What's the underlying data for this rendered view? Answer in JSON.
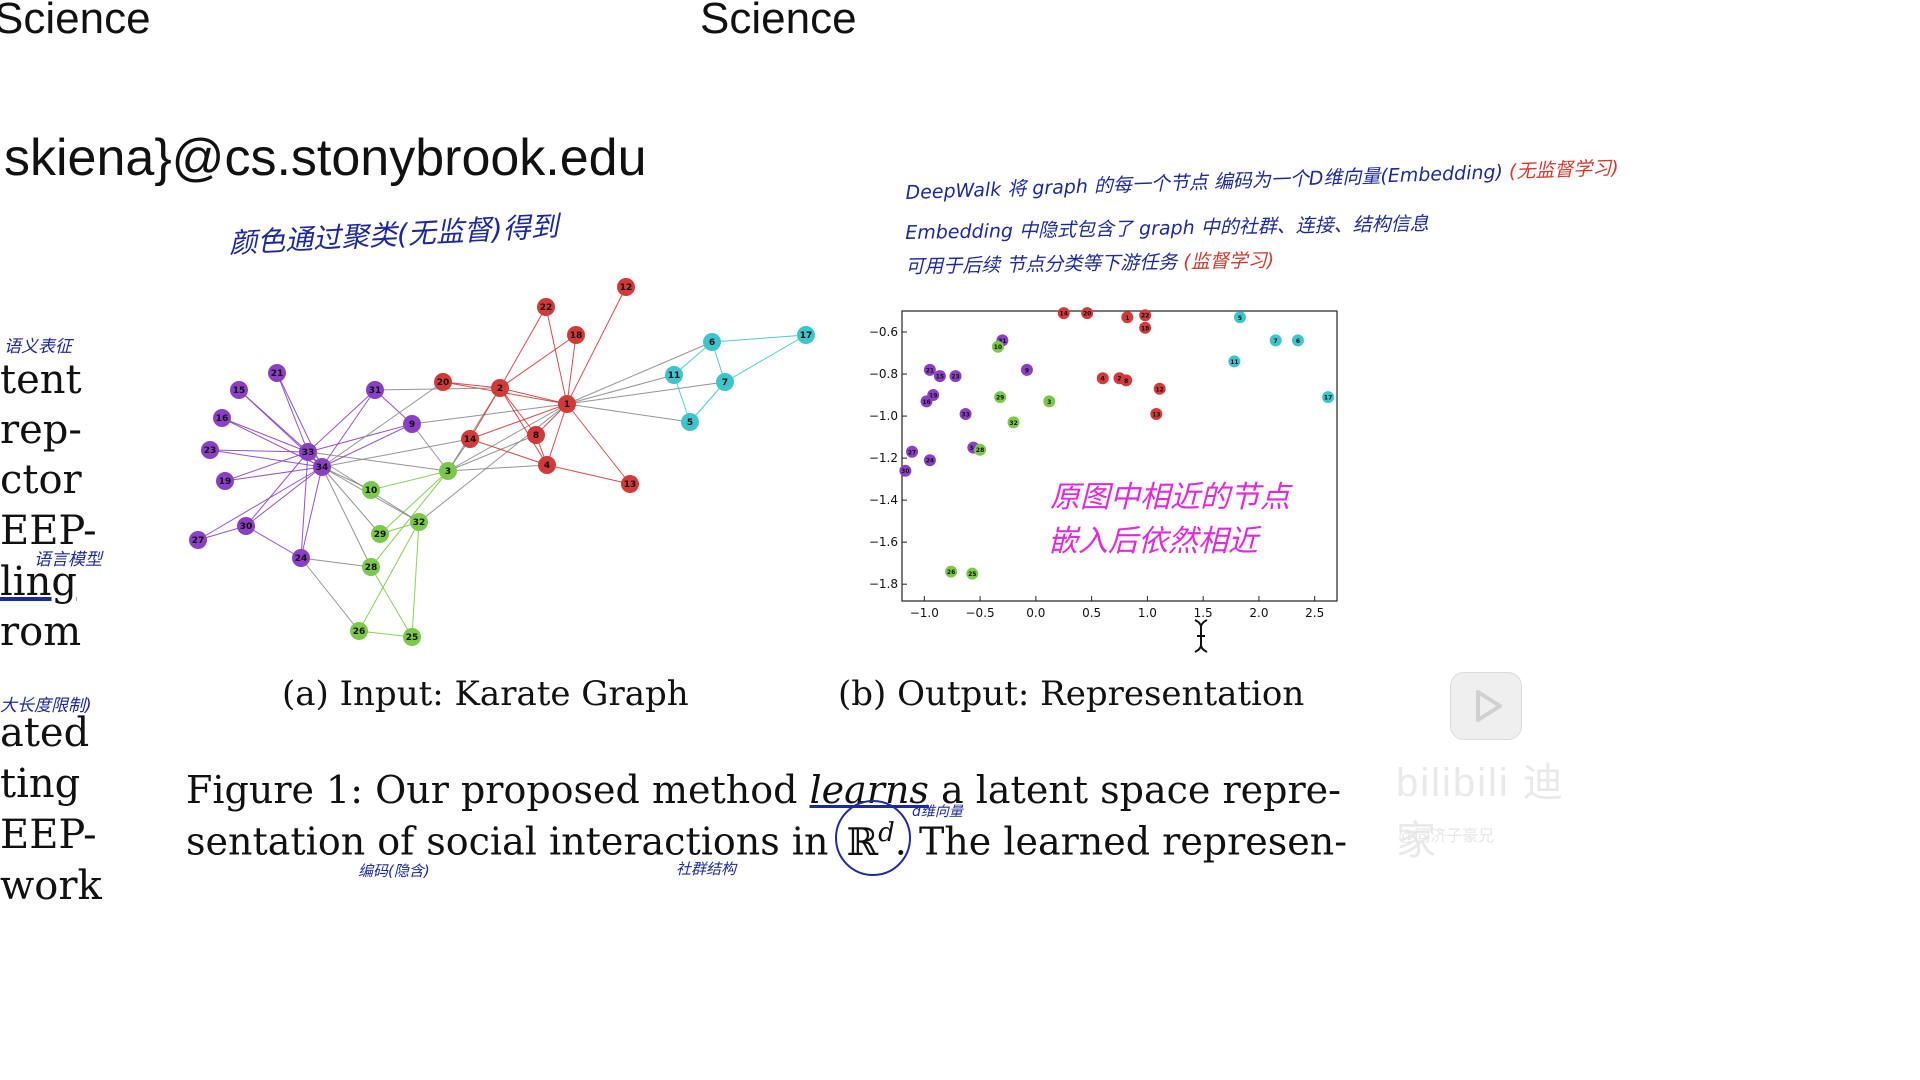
{
  "header": {
    "left_word": "Science",
    "mid_word": "Science",
    "email": "skiena}@cs.stonybrook.edu"
  },
  "left_margin_words": [
    "tent",
    "rep-",
    "ctor",
    "EEP-",
    "ling",
    "rom",
    "ated",
    "ting",
    "EEP-",
    "work"
  ],
  "left_annotations": {
    "a1": "语义表征",
    "a2": "语言模型",
    "a3": "大长度限制)"
  },
  "cluster_note": "颜色通过聚类(无监督)得到",
  "deepwalk_notes": {
    "line1_a": "DeepWalk 将 graph 的每一个节点 编码为一个D维向量(Embedding)",
    "line1_b": "(无监督学习)",
    "line2": "Embedding 中隐式包含了 graph 中的社群、连接、结构信息",
    "line3_a": "可用于后续 节点分类等下游任务",
    "line3_b": "(监督学习)"
  },
  "embedding_note": {
    "line1": "原图中相近的节点",
    "line2": "嵌入后依然相近"
  },
  "subcaptions": {
    "a": "(a) Input: Karate Graph",
    "b": "(b) Output: Representation"
  },
  "figure_caption": {
    "line1_a": "Figure 1: Our proposed method ",
    "line1_em": "learns",
    "line1_b": " a latent space repre-",
    "line2_a": "sentation of social interactions in ",
    "line2_math": "ℝ",
    "line2_sup": "d",
    "line2_b": ". The learned represen-"
  },
  "small_annotations": {
    "d_dim": "d维向量",
    "encode": "编码(隐含)",
    "community": "社群结构"
  },
  "watermark": {
    "main": "bilibili 迪家",
    "sub": "@同济子豪兄"
  },
  "colors": {
    "red": "#d23a3a",
    "purple": "#8a3fc4",
    "green": "#7cc84a",
    "cyan": "#3fc4cc",
    "edge_gray": "#888888",
    "ann_blue": "#1f2a9a",
    "ann_red": "#d23a2e",
    "ann_pink": "#e02bd8"
  },
  "graph": {
    "nodes": [
      {
        "id": "1",
        "c": "red"
      },
      {
        "id": "2",
        "c": "red"
      },
      {
        "id": "3",
        "c": "green"
      },
      {
        "id": "4",
        "c": "red"
      },
      {
        "id": "5",
        "c": "cyan"
      },
      {
        "id": "6",
        "c": "cyan"
      },
      {
        "id": "7",
        "c": "cyan"
      },
      {
        "id": "8",
        "c": "red"
      },
      {
        "id": "9",
        "c": "purple"
      },
      {
        "id": "10",
        "c": "green"
      },
      {
        "id": "11",
        "c": "cyan"
      },
      {
        "id": "12",
        "c": "red"
      },
      {
        "id": "13",
        "c": "red"
      },
      {
        "id": "14",
        "c": "red"
      },
      {
        "id": "15",
        "c": "purple"
      },
      {
        "id": "16",
        "c": "purple"
      },
      {
        "id": "17",
        "c": "cyan"
      },
      {
        "id": "18",
        "c": "red"
      },
      {
        "id": "19",
        "c": "purple"
      },
      {
        "id": "20",
        "c": "red"
      },
      {
        "id": "21",
        "c": "purple"
      },
      {
        "id": "22",
        "c": "red"
      },
      {
        "id": "23",
        "c": "purple"
      },
      {
        "id": "24",
        "c": "purple"
      },
      {
        "id": "25",
        "c": "green"
      },
      {
        "id": "26",
        "c": "green"
      },
      {
        "id": "27",
        "c": "purple"
      },
      {
        "id": "28",
        "c": "green"
      },
      {
        "id": "29",
        "c": "green"
      },
      {
        "id": "30",
        "c": "purple"
      },
      {
        "id": "31",
        "c": "purple"
      },
      {
        "id": "32",
        "c": "green"
      },
      {
        "id": "33",
        "c": "purple"
      },
      {
        "id": "34",
        "c": "purple"
      }
    ]
  },
  "chart_data": {
    "type": "scatter",
    "xlim": [
      -1.2,
      2.7
    ],
    "ylim": [
      -1.88,
      -0.5
    ],
    "xticks": [
      "−1.0",
      "−0.5",
      "0.0",
      "0.5",
      "1.0",
      "1.5",
      "2.0",
      "2.5"
    ],
    "yticks": [
      "−0.6",
      "−0.8",
      "−1.0",
      "−1.2",
      "−1.4",
      "−1.6",
      "−1.8"
    ],
    "xtick_values": [
      -1.0,
      -0.5,
      0.0,
      0.5,
      1.0,
      1.5,
      2.0,
      2.5
    ],
    "ytick_values": [
      -0.6,
      -0.8,
      -1.0,
      -1.2,
      -1.4,
      -1.6,
      -1.8
    ],
    "points": [
      {
        "label": "14",
        "x": 0.25,
        "y": -0.51,
        "color": "red"
      },
      {
        "label": "20",
        "x": 0.46,
        "y": -0.51,
        "color": "red"
      },
      {
        "label": "1",
        "x": 0.82,
        "y": -0.53,
        "color": "red"
      },
      {
        "label": "22",
        "x": 0.98,
        "y": -0.52,
        "color": "red"
      },
      {
        "label": "18",
        "x": 0.98,
        "y": -0.58,
        "color": "red"
      },
      {
        "label": "4",
        "x": 0.6,
        "y": -0.82,
        "color": "red"
      },
      {
        "label": "2",
        "x": 0.75,
        "y": -0.82,
        "color": "red"
      },
      {
        "label": "8",
        "x": 0.81,
        "y": -0.83,
        "color": "red"
      },
      {
        "label": "12",
        "x": 1.11,
        "y": -0.87,
        "color": "red"
      },
      {
        "label": "13",
        "x": 1.08,
        "y": -0.99,
        "color": "red"
      },
      {
        "label": "5",
        "x": 1.83,
        "y": -0.53,
        "color": "cyan"
      },
      {
        "label": "7",
        "x": 2.15,
        "y": -0.64,
        "color": "cyan"
      },
      {
        "label": "6",
        "x": 2.35,
        "y": -0.64,
        "color": "cyan"
      },
      {
        "label": "11",
        "x": 1.78,
        "y": -0.74,
        "color": "cyan"
      },
      {
        "label": "17",
        "x": 2.62,
        "y": -0.91,
        "color": "cyan"
      },
      {
        "label": "31",
        "x": -0.3,
        "y": -0.64,
        "color": "purple"
      },
      {
        "label": "9",
        "x": -0.08,
        "y": -0.78,
        "color": "purple"
      },
      {
        "label": "21",
        "x": -0.95,
        "y": -0.78,
        "color": "purple"
      },
      {
        "label": "15",
        "x": -0.86,
        "y": -0.81,
        "color": "purple"
      },
      {
        "label": "23",
        "x": -0.72,
        "y": -0.81,
        "color": "purple"
      },
      {
        "label": "19",
        "x": -0.92,
        "y": -0.9,
        "color": "purple"
      },
      {
        "label": "16",
        "x": -0.98,
        "y": -0.93,
        "color": "purple"
      },
      {
        "label": "33",
        "x": -0.63,
        "y": -0.99,
        "color": "purple"
      },
      {
        "label": "27",
        "x": -1.11,
        "y": -1.17,
        "color": "purple"
      },
      {
        "label": "24",
        "x": -0.95,
        "y": -1.21,
        "color": "purple"
      },
      {
        "label": "30",
        "x": -1.17,
        "y": -1.26,
        "color": "purple"
      },
      {
        "label": "34",
        "x": -0.56,
        "y": -1.15,
        "color": "purple"
      },
      {
        "label": "10",
        "x": -0.34,
        "y": -0.67,
        "color": "green"
      },
      {
        "label": "29",
        "x": -0.32,
        "y": -0.91,
        "color": "green"
      },
      {
        "label": "3",
        "x": 0.12,
        "y": -0.93,
        "color": "green"
      },
      {
        "label": "32",
        "x": -0.2,
        "y": -1.03,
        "color": "green"
      },
      {
        "label": "28",
        "x": -0.5,
        "y": -1.16,
        "color": "green"
      },
      {
        "label": "26",
        "x": -0.76,
        "y": -1.74,
        "color": "green"
      },
      {
        "label": "25",
        "x": -0.57,
        "y": -1.75,
        "color": "green"
      }
    ]
  }
}
